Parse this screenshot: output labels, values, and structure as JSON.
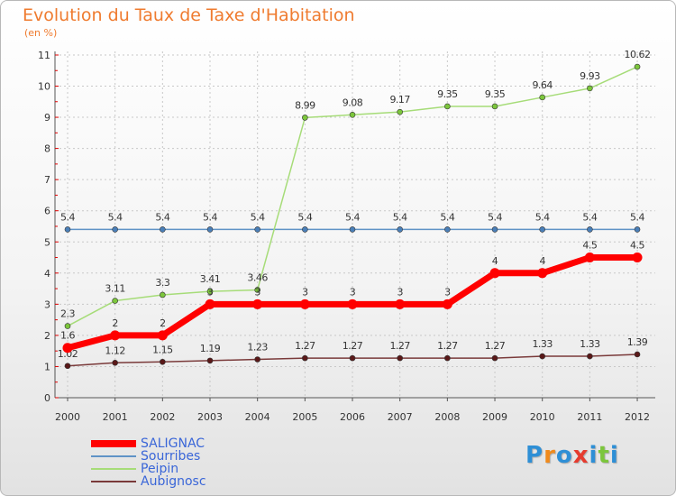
{
  "chart_data": {
    "type": "line",
    "title": "Evolution du Taux de Taxe d'Habitation",
    "subtitle": "(en %)",
    "xlabel": "",
    "ylabel": "",
    "x": [
      2000,
      2001,
      2002,
      2003,
      2004,
      2005,
      2006,
      2007,
      2008,
      2009,
      2010,
      2011,
      2012
    ],
    "ylim": [
      0,
      11
    ],
    "yticks": [
      "0",
      "1",
      "2",
      "3",
      "4",
      "5",
      "6",
      "7",
      "8",
      "9",
      "10",
      "11"
    ],
    "grid": true,
    "legend_position": "bottom-left",
    "series": [
      {
        "name": "Sourribes",
        "color": "#5f93c6",
        "marker": "#4a7fb8",
        "style": "thin",
        "values": [
          5.4,
          5.4,
          5.4,
          5.4,
          5.4,
          5.4,
          5.4,
          5.4,
          5.4,
          5.4,
          5.4,
          5.4,
          5.4
        ],
        "labels": [
          "5.4",
          "5.4",
          "5.4",
          "5.4",
          "5.4",
          "5.4",
          "5.4",
          "5.4",
          "5.4",
          "5.4",
          "5.4",
          "5.4",
          "5.4"
        ]
      },
      {
        "name": "Peipin",
        "color": "#a6dc78",
        "marker": "#7cc63c",
        "style": "thin",
        "values": [
          2.3,
          3.11,
          3.3,
          3.41,
          3.46,
          8.99,
          9.08,
          9.17,
          9.35,
          9.35,
          9.64,
          9.93,
          10.62
        ],
        "labels": [
          "2.3",
          "3.11",
          "3.3",
          "3.41",
          "3.46",
          "8.99",
          "9.08",
          "9.17",
          "9.35",
          "9.35",
          "9.64",
          "9.93",
          "10.62"
        ]
      },
      {
        "name": "Aubignosc",
        "color": "#7a3a3a",
        "marker": "#5a1818",
        "style": "thin",
        "values": [
          1.02,
          1.12,
          1.15,
          1.19,
          1.23,
          1.27,
          1.27,
          1.27,
          1.27,
          1.27,
          1.33,
          1.33,
          1.39
        ],
        "labels": [
          "1.02",
          "1.12",
          "1.15",
          "1.19",
          "1.23",
          "1.27",
          "1.27",
          "1.27",
          "1.27",
          "1.27",
          "1.33",
          "1.33",
          "1.39"
        ]
      },
      {
        "name": "SALIGNAC",
        "color": "#ff0000",
        "marker": "#ff0000",
        "style": "thick",
        "values": [
          1.6,
          2,
          2,
          3,
          3,
          3,
          3,
          3,
          3,
          4,
          4,
          4.5,
          4.5
        ],
        "labels": [
          "1.6",
          "2",
          "2",
          "3",
          "3",
          "3",
          "3",
          "3",
          "3",
          "4",
          "4",
          "4.5",
          "4.5"
        ]
      }
    ]
  },
  "legend": {
    "items": [
      {
        "label": "SALIGNAC",
        "color": "#ff0000",
        "style": "thick"
      },
      {
        "label": "Sourribes",
        "color": "#5f93c6",
        "style": "thin"
      },
      {
        "label": "Peipin",
        "color": "#a6dc78",
        "style": "thin"
      },
      {
        "label": "Aubignosc",
        "color": "#7a3a3a",
        "style": "thin"
      }
    ]
  },
  "brand": {
    "letters": [
      "P",
      "r",
      "o",
      "x",
      "i",
      "t",
      "i"
    ],
    "colors": [
      "#2e8fd6",
      "#f08a1c",
      "#2e8fd6",
      "#e63b2e",
      "#2e8fd6",
      "#7cc63c",
      "#2e8fd6"
    ]
  }
}
